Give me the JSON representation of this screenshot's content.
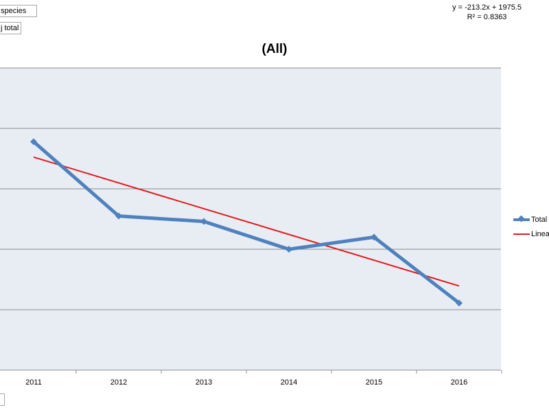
{
  "filters": {
    "species_label": "species",
    "total_label": "j total"
  },
  "trendline": {
    "equation": "y = -213.2x + 1975.5",
    "r_squared": "R² = 0.8363"
  },
  "colors": {
    "plot_background": "#e8edf4",
    "gridline": "#8c8c8c",
    "series_total": "#4f81bd",
    "series_linear": "#e31a1c"
  },
  "chart_data": {
    "type": "line",
    "title": "(All)",
    "xlabel": "",
    "ylabel": "",
    "categories": [
      "2011",
      "2012",
      "2013",
      "2014",
      "2015",
      "2016"
    ],
    "series": [
      {
        "name": "Total",
        "values": [
          1890,
          1275,
          1230,
          1000,
          1100,
          555
        ],
        "marker": "diamond"
      },
      {
        "name": "Linear",
        "type": "trendline",
        "slope": -213.2,
        "intercept": 1975.5
      }
    ],
    "ylim": [
      0,
      2500
    ],
    "grid": true,
    "legend_position": "right"
  }
}
